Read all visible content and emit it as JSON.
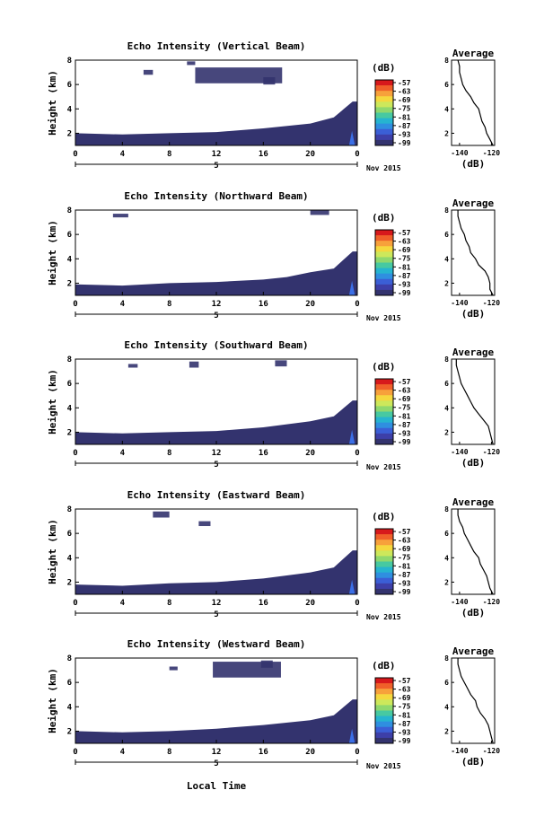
{
  "figure": {
    "xlabel": "Local Time",
    "date_label": "Nov 2015",
    "day_label": "5",
    "colorbar_unit": "(dB)",
    "colorbar_ticks": [
      "-57",
      "-63",
      "-69",
      "-75",
      "-81",
      "-87",
      "-93",
      "-99"
    ],
    "avg_title": "Average",
    "avg_xlabel": "(dB)",
    "colors": {
      "echo": "#33336e",
      "strong_echo": "#3b6fe6",
      "line": "#000000"
    },
    "colorbar_colors": [
      "#d7191c",
      "#f0602a",
      "#f7a13b",
      "#f5d83e",
      "#cde85b",
      "#8fd86e",
      "#47c9a1",
      "#26b4d0",
      "#2f8fe0",
      "#3b5fd6",
      "#3d3fa8",
      "#33336e"
    ]
  },
  "chart_data": [
    {
      "type": "heatmap",
      "title": "Echo Intensity (Vertical Beam)",
      "ylabel": "Height (km)",
      "x_ticks": [
        "0",
        "4",
        "8",
        "12",
        "16",
        "20",
        "0"
      ],
      "y_ticks": [
        "2",
        "4",
        "6",
        "8"
      ],
      "xlim": [
        0,
        24
      ],
      "ylim": [
        1,
        8
      ],
      "boundary_height_km": [
        [
          0,
          2.0
        ],
        [
          4,
          1.9
        ],
        [
          8,
          2.0
        ],
        [
          12,
          2.1
        ],
        [
          16,
          2.4
        ],
        [
          20,
          2.8
        ],
        [
          22,
          3.3
        ],
        [
          23.6,
          4.6
        ],
        [
          24,
          4.6
        ]
      ],
      "clutter_blocks": [
        [
          10.2,
          17.6,
          6.1,
          7.4
        ],
        [
          5.8,
          6.6,
          6.8,
          7.2
        ],
        [
          9.5,
          10.2,
          7.6,
          7.9
        ],
        [
          16,
          17,
          6.0,
          6.6
        ]
      ],
      "avg_profile": {
        "xlabel": "(dB)",
        "x_ticks": [
          "-140",
          "-120"
        ],
        "xlim": [
          -145,
          -118
        ],
        "y_ticks": [
          "2",
          "4",
          "6",
          "8"
        ],
        "ylim": [
          1,
          8
        ],
        "heights_km": [
          1,
          1.5,
          2,
          2.5,
          3,
          3.5,
          4,
          4.5,
          5,
          5.5,
          6,
          6.5,
          7,
          7.5,
          8
        ],
        "values_db": [
          -119,
          -121,
          -123,
          -124,
          -126,
          -127,
          -128,
          -131,
          -133,
          -136,
          -138,
          -139,
          -140,
          -140,
          -141
        ]
      }
    },
    {
      "type": "heatmap",
      "title": "Echo Intensity (Northward Beam)",
      "ylabel": "Height (km)",
      "x_ticks": [
        "0",
        "4",
        "8",
        "12",
        "16",
        "20",
        "0"
      ],
      "y_ticks": [
        "2",
        "4",
        "6",
        "8"
      ],
      "xlim": [
        0,
        24
      ],
      "ylim": [
        1,
        8
      ],
      "boundary_height_km": [
        [
          0,
          1.9
        ],
        [
          4,
          1.8
        ],
        [
          8,
          2.0
        ],
        [
          12,
          2.1
        ],
        [
          16,
          2.3
        ],
        [
          18,
          2.5
        ],
        [
          20,
          2.9
        ],
        [
          22,
          3.2
        ],
        [
          23.6,
          4.6
        ],
        [
          24,
          4.6
        ]
      ],
      "clutter_blocks": [
        [
          20,
          21.6,
          7.6,
          8.0
        ],
        [
          3.2,
          4.5,
          7.4,
          7.7
        ]
      ],
      "avg_profile": {
        "xlabel": "(dB)",
        "x_ticks": [
          "-140",
          "-120"
        ],
        "xlim": [
          -145,
          -118
        ],
        "y_ticks": [
          "2",
          "4",
          "6",
          "8"
        ],
        "ylim": [
          1,
          8
        ],
        "heights_km": [
          1,
          1.5,
          2,
          2.5,
          3,
          3.5,
          4,
          4.5,
          5,
          5.5,
          6,
          6.5,
          7,
          7.5,
          8
        ],
        "values_db": [
          -119,
          -121,
          -121,
          -122,
          -124,
          -128,
          -130,
          -133,
          -134,
          -136,
          -137,
          -139,
          -140,
          -141,
          -141
        ]
      }
    },
    {
      "type": "heatmap",
      "title": "Echo Intensity (Southward Beam)",
      "ylabel": "Height (km)",
      "x_ticks": [
        "0",
        "4",
        "8",
        "12",
        "16",
        "20",
        "0"
      ],
      "y_ticks": [
        "2",
        "4",
        "6",
        "8"
      ],
      "xlim": [
        0,
        24
      ],
      "ylim": [
        1,
        8
      ],
      "boundary_height_km": [
        [
          0,
          2.0
        ],
        [
          4,
          1.9
        ],
        [
          8,
          2.0
        ],
        [
          12,
          2.1
        ],
        [
          16,
          2.4
        ],
        [
          20,
          2.9
        ],
        [
          22,
          3.3
        ],
        [
          23.6,
          4.6
        ],
        [
          24,
          4.6
        ]
      ],
      "clutter_blocks": [
        [
          9.7,
          10.5,
          7.3,
          7.8
        ],
        [
          4.5,
          5.3,
          7.3,
          7.6
        ],
        [
          17,
          18,
          7.4,
          7.9
        ]
      ],
      "avg_profile": {
        "xlabel": "(dB)",
        "x_ticks": [
          "-140",
          "-120"
        ],
        "xlim": [
          -145,
          -118
        ],
        "y_ticks": [
          "2",
          "4",
          "6",
          "8"
        ],
        "ylim": [
          1,
          8
        ],
        "heights_km": [
          1,
          1.5,
          2,
          2.5,
          3,
          3.5,
          4,
          4.5,
          5,
          5.5,
          6,
          6.5,
          7,
          7.5,
          8
        ],
        "values_db": [
          -119,
          -120,
          -121,
          -122,
          -125,
          -128,
          -131,
          -133,
          -135,
          -137,
          -139,
          -140,
          -141,
          -142,
          -142
        ]
      }
    },
    {
      "type": "heatmap",
      "title": "Echo Intensity (Eastward Beam)",
      "ylabel": "Height (km)",
      "x_ticks": [
        "0",
        "4",
        "8",
        "12",
        "16",
        "20",
        "0"
      ],
      "y_ticks": [
        "2",
        "4",
        "6",
        "8"
      ],
      "xlim": [
        0,
        24
      ],
      "ylim": [
        1,
        8
      ],
      "boundary_height_km": [
        [
          0,
          1.8
        ],
        [
          4,
          1.7
        ],
        [
          8,
          1.9
        ],
        [
          12,
          2.0
        ],
        [
          16,
          2.3
        ],
        [
          20,
          2.8
        ],
        [
          22,
          3.2
        ],
        [
          23.6,
          4.6
        ],
        [
          24,
          4.6
        ]
      ],
      "clutter_blocks": [
        [
          6.6,
          8.0,
          7.3,
          7.8
        ],
        [
          10.5,
          11.5,
          6.6,
          7.0
        ]
      ],
      "avg_profile": {
        "xlabel": "(dB)",
        "x_ticks": [
          "-140",
          "-120"
        ],
        "xlim": [
          -145,
          -118
        ],
        "y_ticks": [
          "2",
          "4",
          "6",
          "8"
        ],
        "ylim": [
          1,
          8
        ],
        "heights_km": [
          1,
          1.5,
          2,
          2.5,
          3,
          3.5,
          4,
          4.5,
          5,
          5.5,
          6,
          6.5,
          7,
          7.5,
          8
        ],
        "values_db": [
          -119,
          -121,
          -122,
          -123,
          -125,
          -127,
          -128,
          -131,
          -133,
          -135,
          -137,
          -138,
          -140,
          -141,
          -141
        ]
      }
    },
    {
      "type": "heatmap",
      "title": "Echo Intensity (Westward Beam)",
      "ylabel": "Height (km)",
      "x_ticks": [
        "0",
        "4",
        "8",
        "12",
        "16",
        "20",
        "0"
      ],
      "y_ticks": [
        "2",
        "4",
        "6",
        "8"
      ],
      "xlim": [
        0,
        24
      ],
      "ylim": [
        1,
        8
      ],
      "boundary_height_km": [
        [
          0,
          2.0
        ],
        [
          4,
          1.9
        ],
        [
          8,
          2.0
        ],
        [
          12,
          2.2
        ],
        [
          16,
          2.5
        ],
        [
          20,
          2.9
        ],
        [
          22,
          3.3
        ],
        [
          23.6,
          4.6
        ],
        [
          24,
          4.6
        ]
      ],
      "clutter_blocks": [
        [
          11.7,
          17.5,
          6.4,
          7.7
        ],
        [
          8,
          8.7,
          7.0,
          7.3
        ],
        [
          15.8,
          16.8,
          7.2,
          7.8
        ]
      ],
      "avg_profile": {
        "xlabel": "(dB)",
        "x_ticks": [
          "-140",
          "-120"
        ],
        "xlim": [
          -145,
          -118
        ],
        "y_ticks": [
          "2",
          "4",
          "6",
          "8"
        ],
        "ylim": [
          1,
          8
        ],
        "heights_km": [
          1,
          1.5,
          2,
          2.5,
          3,
          3.5,
          4,
          4.5,
          5,
          5.5,
          6,
          6.5,
          7,
          7.5,
          8
        ],
        "values_db": [
          -119,
          -120,
          -121,
          -122,
          -124,
          -127,
          -129,
          -130,
          -133,
          -135,
          -137,
          -139,
          -140,
          -141,
          -141
        ]
      }
    }
  ]
}
